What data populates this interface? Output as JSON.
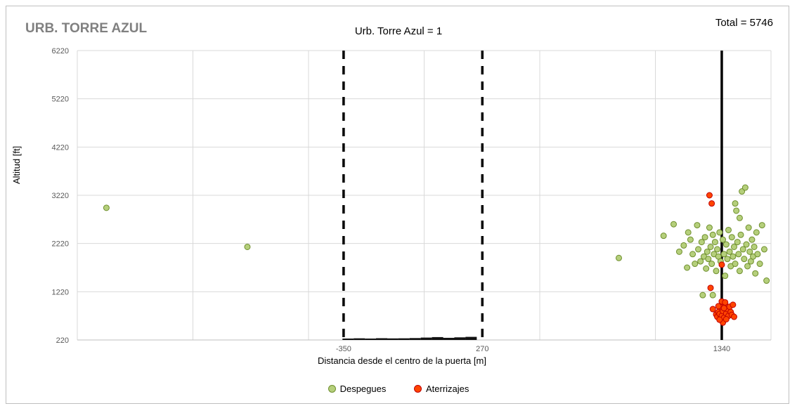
{
  "chart_data": {
    "type": "scatter",
    "corner_title": "URB. TORRE AZUL",
    "title": "Urb. Torre Azul = 1",
    "total_label": "Total = 5746",
    "xlabel": "Distancia desde el centro de la puerta [m]",
    "ylabel": "Altitud [ft]",
    "xlim": [
      -1540,
      1560
    ],
    "ylim": [
      220,
      6220
    ],
    "y_ticks": [
      220,
      1220,
      2220,
      3220,
      4220,
      5220,
      6220
    ],
    "x_tick_labels": [
      -350,
      270,
      1340
    ],
    "grid": true,
    "legend_position": "bottom",
    "reference_lines": [
      {
        "x": -350,
        "style": "dashed",
        "color": "#000000"
      },
      {
        "x": 270,
        "style": "dashed",
        "color": "#000000"
      },
      {
        "x": 1340,
        "style": "solid",
        "color": "#000000"
      }
    ],
    "series": [
      {
        "name": "Despegues",
        "color": "#b5cf7b",
        "stroke": "#6f8f2e",
        "points": [
          [
            -1410,
            2960
          ],
          [
            -780,
            2150
          ],
          [
            880,
            1920
          ],
          [
            1080,
            2380
          ],
          [
            1125,
            2620
          ],
          [
            1150,
            2050
          ],
          [
            1170,
            2180
          ],
          [
            1185,
            1720
          ],
          [
            1190,
            2450
          ],
          [
            1200,
            2300
          ],
          [
            1210,
            2000
          ],
          [
            1220,
            1800
          ],
          [
            1230,
            2600
          ],
          [
            1235,
            2100
          ],
          [
            1245,
            1850
          ],
          [
            1250,
            2250
          ],
          [
            1255,
            1150
          ],
          [
            1260,
            1950
          ],
          [
            1265,
            2350
          ],
          [
            1270,
            1700
          ],
          [
            1275,
            2050
          ],
          [
            1280,
            1900
          ],
          [
            1285,
            2550
          ],
          [
            1290,
            2150
          ],
          [
            1295,
            1800
          ],
          [
            1300,
            2400
          ],
          [
            1305,
            2000
          ],
          [
            1310,
            2250
          ],
          [
            1315,
            1650
          ],
          [
            1320,
            2100
          ],
          [
            1325,
            1950
          ],
          [
            1330,
            2450
          ],
          [
            1335,
            1850
          ],
          [
            1345,
            2300
          ],
          [
            1350,
            2000
          ],
          [
            1355,
            1550
          ],
          [
            1360,
            2200
          ],
          [
            1365,
            1900
          ],
          [
            1370,
            2500
          ],
          [
            1375,
            2050
          ],
          [
            1380,
            1750
          ],
          [
            1385,
            2350
          ],
          [
            1390,
            1950
          ],
          [
            1395,
            2150
          ],
          [
            1400,
            1800
          ],
          [
            1405,
            2900
          ],
          [
            1410,
            2250
          ],
          [
            1415,
            2000
          ],
          [
            1420,
            1650
          ],
          [
            1425,
            2400
          ],
          [
            1430,
            3300
          ],
          [
            1435,
            2100
          ],
          [
            1440,
            1900
          ],
          [
            1445,
            3380
          ],
          [
            1450,
            2200
          ],
          [
            1455,
            1750
          ],
          [
            1460,
            2550
          ],
          [
            1465,
            2050
          ],
          [
            1470,
            1850
          ],
          [
            1475,
            2300
          ],
          [
            1480,
            1950
          ],
          [
            1485,
            2150
          ],
          [
            1490,
            1600
          ],
          [
            1495,
            2450
          ],
          [
            1500,
            2000
          ],
          [
            1510,
            1800
          ],
          [
            1520,
            2600
          ],
          [
            1530,
            2100
          ],
          [
            1540,
            1450
          ],
          [
            1300,
            1150
          ],
          [
            1400,
            3050
          ],
          [
            1420,
            2750
          ]
        ]
      },
      {
        "name": "Aterrizajes",
        "color": "#ff4500",
        "stroke": "#c00000",
        "points": [
          [
            1285,
            3220
          ],
          [
            1295,
            3050
          ],
          [
            1340,
            1780
          ],
          [
            1290,
            1300
          ],
          [
            1300,
            860
          ],
          [
            1315,
            750
          ],
          [
            1320,
            700
          ],
          [
            1325,
            800
          ],
          [
            1330,
            760
          ],
          [
            1335,
            900
          ],
          [
            1340,
            720
          ],
          [
            1345,
            820
          ],
          [
            1350,
            680
          ],
          [
            1355,
            950
          ],
          [
            1360,
            770
          ],
          [
            1365,
            860
          ],
          [
            1370,
            720
          ],
          [
            1375,
            910
          ],
          [
            1380,
            800
          ],
          [
            1385,
            740
          ],
          [
            1390,
            950
          ],
          [
            1395,
            700
          ],
          [
            1340,
            1020
          ],
          [
            1345,
            580
          ],
          [
            1330,
            640
          ],
          [
            1355,
            1000
          ],
          [
            1360,
            650
          ],
          [
            1325,
            920
          ],
          [
            1350,
            880
          ]
        ]
      }
    ],
    "ground_bars": [
      {
        "x": -330,
        "h": 15
      },
      {
        "x": -280,
        "h": 20
      },
      {
        "x": -230,
        "h": 15
      },
      {
        "x": -180,
        "h": 22
      },
      {
        "x": -130,
        "h": 18
      },
      {
        "x": -80,
        "h": 20
      },
      {
        "x": -30,
        "h": 25
      },
      {
        "x": 20,
        "h": 35
      },
      {
        "x": 70,
        "h": 45
      },
      {
        "x": 120,
        "h": 30
      },
      {
        "x": 170,
        "h": 40
      },
      {
        "x": 220,
        "h": 50
      }
    ]
  }
}
